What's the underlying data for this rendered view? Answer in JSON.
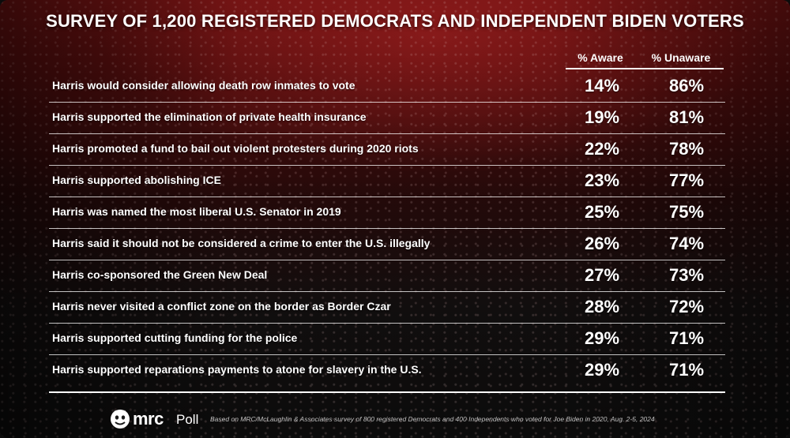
{
  "title": "SURVEY OF 1,200 REGISTERED DEMOCRATS AND INDEPENDENT BIDEN VOTERS",
  "columns": {
    "aware": "% Aware",
    "unaware": "% Unaware"
  },
  "chart_data": {
    "type": "table",
    "title": "SURVEY OF 1,200 REGISTERED DEMOCRATS AND INDEPENDENT BIDEN VOTERS",
    "columns": [
      "% Aware",
      "% Unaware"
    ],
    "rows": [
      {
        "statement": "Harris would consider allowing death row inmates to vote",
        "aware": "14%",
        "unaware": "86%"
      },
      {
        "statement": "Harris supported the elimination of private health insurance",
        "aware": "19%",
        "unaware": "81%"
      },
      {
        "statement": "Harris promoted a fund to bail out violent protesters during 2020 riots",
        "aware": "22%",
        "unaware": "78%"
      },
      {
        "statement": "Harris supported abolishing ICE",
        "aware": "23%",
        "unaware": "77%"
      },
      {
        "statement": "Harris was named the most liberal U.S. Senator in 2019",
        "aware": "25%",
        "unaware": "75%"
      },
      {
        "statement": "Harris said it should not be considered a crime to enter the U.S. illegally",
        "aware": "26%",
        "unaware": "74%"
      },
      {
        "statement": "Harris co-sponsored the Green New Deal",
        "aware": "27%",
        "unaware": "73%"
      },
      {
        "statement": "Harris never visited a conflict zone on the border as Border Czar",
        "aware": "28%",
        "unaware": "72%"
      },
      {
        "statement": "Harris supported cutting funding for the police",
        "aware": "29%",
        "unaware": "71%"
      },
      {
        "statement": "Harris supported reparations payments to atone for slavery in the U.S.",
        "aware": "29%",
        "unaware": "71%"
      }
    ]
  },
  "footer": {
    "logo_text": "mrc",
    "poll_text": "Poll",
    "footnote": "Based on MRC/McLaughlin & Associates survey of 800 registered Democrats and 400 Independents who voted for Joe Biden in 2020, Aug. 2-5, 2024"
  },
  "colors": {
    "background_top": "#7a1414",
    "background_bottom": "#0d0d0d",
    "text": "#ffffff"
  },
  "icons": {
    "logo": "bulldog-logo-icon"
  }
}
